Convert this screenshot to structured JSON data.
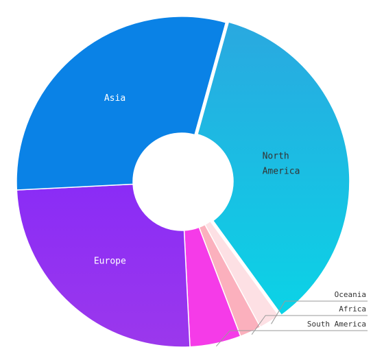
{
  "chart_data": {
    "type": "pie",
    "donut": true,
    "title": "",
    "slices": [
      {
        "label": "North America",
        "value": 35.7,
        "color_top": "#2aa8e0",
        "color_bottom": "#0bd3e6",
        "label_lines": [
          "North",
          "America"
        ],
        "label_style": "inside-dark"
      },
      {
        "label": "Oceania",
        "value": 2.1,
        "color": "#fde0e4",
        "label_style": "outside"
      },
      {
        "label": "Africa",
        "value": 2.1,
        "color": "#fbb0bd",
        "label_style": "outside"
      },
      {
        "label": "South America",
        "value": 5.0,
        "color": "#f53be8",
        "label_style": "outside"
      },
      {
        "label": "Europe",
        "value": 25.0,
        "color_top": "#8a2cf6",
        "color_bottom": "#9b38ec",
        "label_lines": [
          "Europe"
        ],
        "label_style": "inside"
      },
      {
        "label": "Asia",
        "value": 30.1,
        "color": "#0a82e6",
        "label_lines": [
          "Asia"
        ],
        "label_style": "inside"
      }
    ]
  }
}
